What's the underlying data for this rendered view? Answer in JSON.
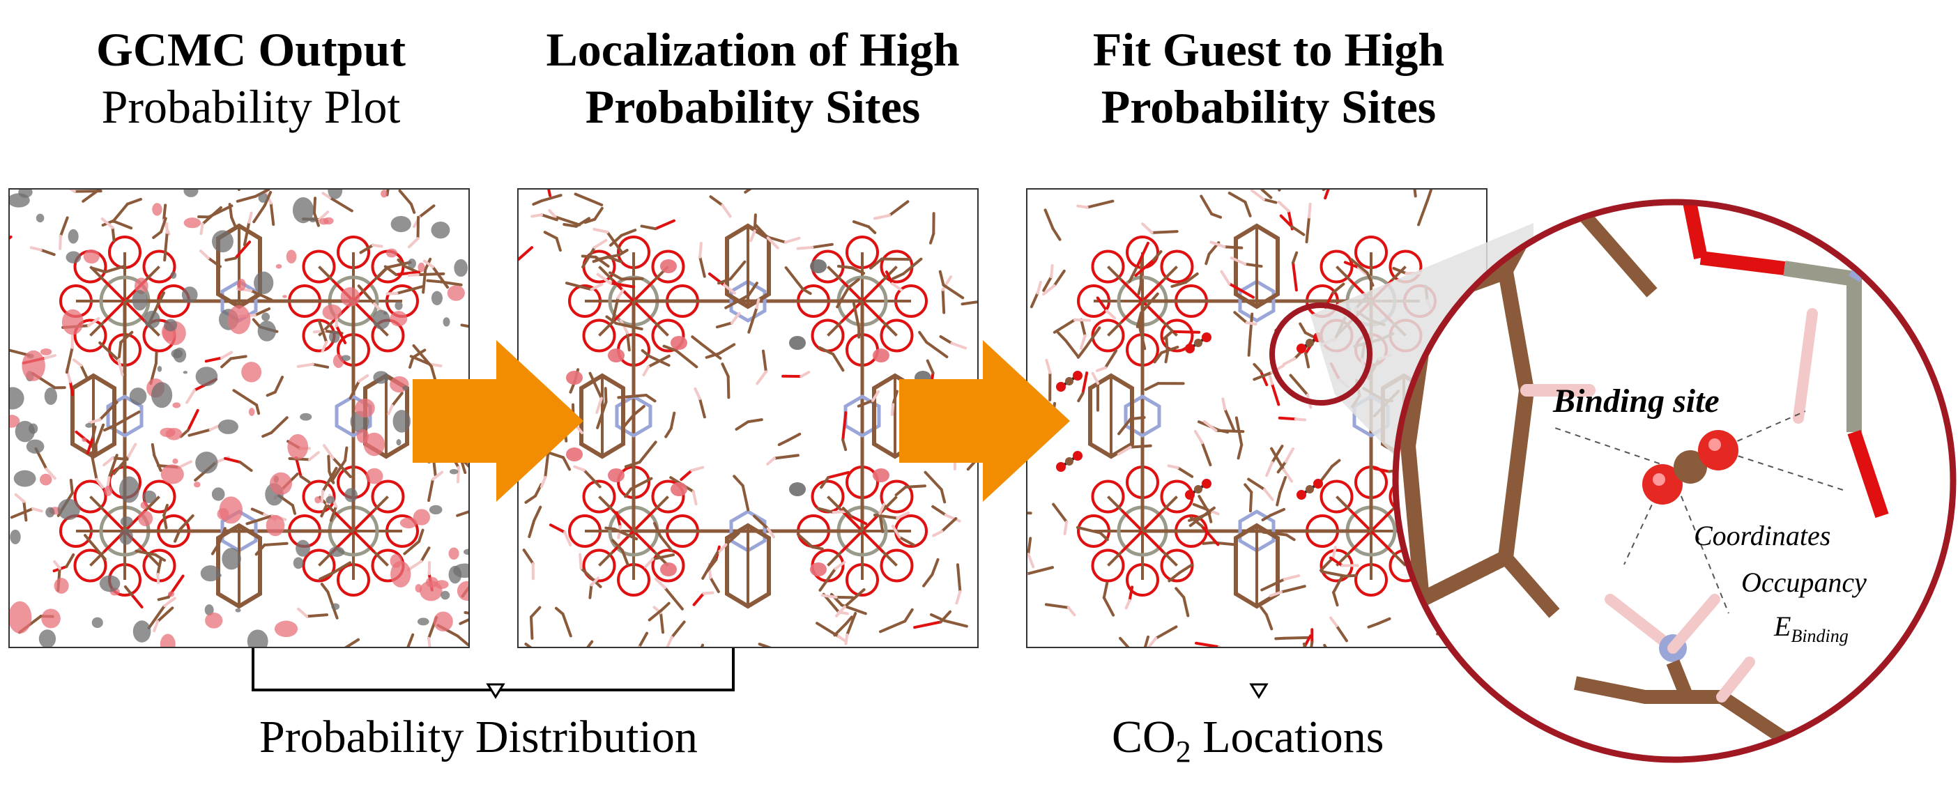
{
  "titles": {
    "panel1": {
      "bold": "GCMC Output",
      "normal": "Probability Plot"
    },
    "panel2": {
      "line1": "Localization of High",
      "line2": "Probability Sites"
    },
    "panel3": {
      "line1": "Fit Guest to High",
      "line2": "Probability Sites"
    }
  },
  "zoom": {
    "binding_site": "Binding site",
    "coordinates": "Coordinates",
    "occupancy": "Occupancy",
    "energy_main": "E",
    "energy_sub": "Binding"
  },
  "bottom": {
    "probability_distribution": "Probability Distribution",
    "co2_main": "CO",
    "co2_sub": "2",
    "co2_rest": " Locations"
  },
  "colors": {
    "bond_brown": "#8a5a3a",
    "oxygen_red": "#e01010",
    "nitrogen_blue": "#9aa6d8",
    "metal_gray": "#9a9a8a",
    "hydrogen_pink": "#f2c8c8",
    "arrow_orange": "#f28c00",
    "zoom_ring": "#a01822",
    "prob_red": "#e8707a",
    "prob_gray": "#6e6e6e"
  },
  "icons": {
    "transition_arrow": "orange-right-arrow",
    "marker": "down-triangle-icon"
  }
}
